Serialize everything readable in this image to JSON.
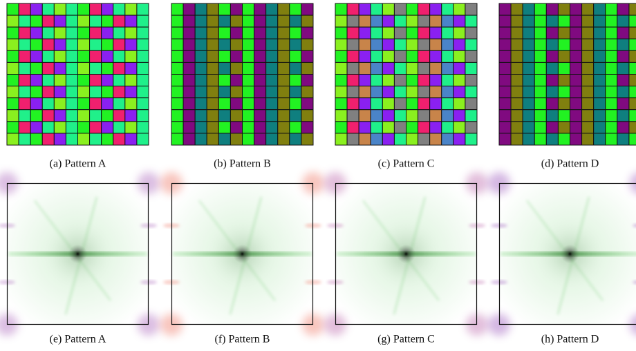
{
  "panels": [
    {
      "caption": "(a) Pattern A"
    },
    {
      "caption": "(b) Pattern B"
    },
    {
      "caption": "(c) Pattern C"
    },
    {
      "caption": "(d) Pattern D"
    },
    {
      "caption": "(e) Pattern A"
    },
    {
      "caption": "(f) Pattern B"
    },
    {
      "caption": "(g) Pattern C"
    },
    {
      "caption": "(h) Pattern D"
    }
  ]
}
